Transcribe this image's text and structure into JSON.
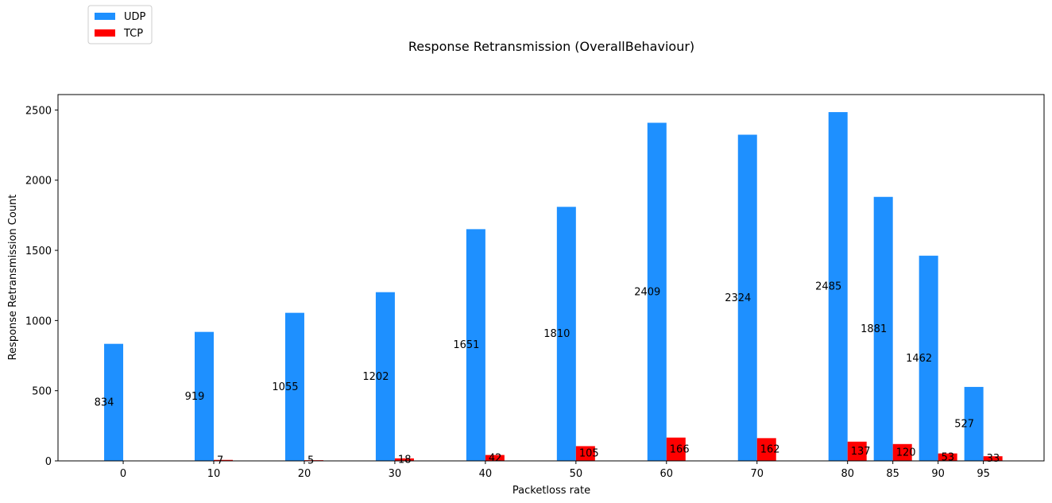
{
  "chart_data": {
    "type": "bar",
    "title": "Response Retransmission (OverallBehaviour)",
    "xlabel": "Packetloss rate",
    "ylabel": "Response Retransmission Count",
    "categories": [
      "0",
      "10",
      "20",
      "30",
      "40",
      "50",
      "60",
      "70",
      "80",
      "85",
      "90",
      "95"
    ],
    "x": [
      0,
      10,
      20,
      30,
      40,
      50,
      60,
      70,
      80,
      85,
      90,
      95
    ],
    "xlim": [
      -7.2,
      101.7
    ],
    "ylim": [
      0,
      2610
    ],
    "yticks": [
      0,
      500,
      1000,
      1500,
      2000,
      2500
    ],
    "series": [
      {
        "name": "UDP",
        "color": "#1e90ff",
        "values": [
          834,
          919,
          1055,
          1202,
          1651,
          1810,
          2409,
          2324,
          2485,
          1881,
          1462,
          527
        ],
        "labels": [
          "834",
          "919",
          "1055",
          "1202",
          "1651",
          "1810",
          "2409",
          "2324",
          "2485",
          "1881",
          "1462",
          "527"
        ]
      },
      {
        "name": "TCP",
        "color": "#ff0000",
        "values": [
          0,
          7,
          5,
          18,
          42,
          105,
          166,
          162,
          137,
          120,
          53,
          33
        ],
        "labels": [
          "",
          "7",
          "5",
          "18",
          "42",
          "105",
          "166",
          "162",
          "137",
          "120",
          "53",
          "33"
        ]
      }
    ],
    "legend": "top-left",
    "grid": false
  }
}
